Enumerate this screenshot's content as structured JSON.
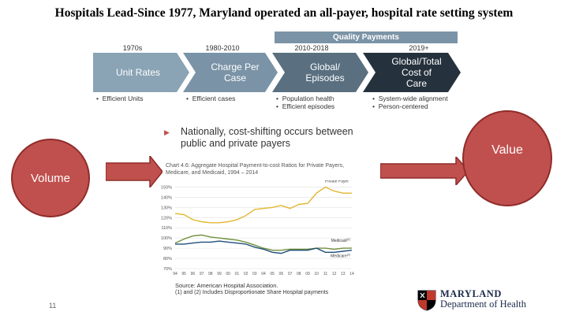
{
  "slide": {
    "title": "Hospitals Lead-Since 1977, Maryland operated an all-payer, hospital rate setting system",
    "page_number": "11"
  },
  "timeline": {
    "quality_bar": "Quality Payments",
    "stages": [
      {
        "era": "1970s",
        "label": "Unit Rates",
        "bullets": [
          "Efficient Units"
        ],
        "color": "#8aa3b5"
      },
      {
        "era": "1980-2010",
        "label": "Charge Per\nCase",
        "bullets": [
          "Efficient cases"
        ],
        "color": "#7a93a6"
      },
      {
        "era": "2010-2018",
        "label": "Global/\nEpisodes",
        "bullets": [
          "Population health",
          "Efficient episodes"
        ],
        "color": "#5a7080"
      },
      {
        "era": "2019+",
        "label": "Global/Total\nCost of\nCare",
        "bullets": [
          "System-wide alignment",
          "Person-centered"
        ],
        "color": "#25323d"
      }
    ]
  },
  "note": "Nationally, cost-shifting occurs between public and private payers",
  "circles": {
    "left": "Volume",
    "right": "Value",
    "color": "#c0504d"
  },
  "chart_data": {
    "type": "line",
    "title": "Chart 4.6: Aggregate Hospital Payment-to-cost Ratios for Private Payers, Medicare, and Medicaid, 1994 – 2014",
    "x": [
      "94",
      "95",
      "96",
      "97",
      "98",
      "99",
      "00",
      "01",
      "02",
      "03",
      "04",
      "05",
      "06",
      "07",
      "08",
      "09",
      "10",
      "11",
      "12",
      "13",
      "14"
    ],
    "yticks": [
      "150%",
      "140%",
      "130%",
      "120%",
      "110%",
      "100%",
      "90%",
      "80%",
      "70%"
    ],
    "ylim": [
      70,
      155
    ],
    "series": [
      {
        "name": "Private Payer",
        "color": "#e3b631",
        "values": [
          124,
          123,
          118,
          116,
          115,
          115,
          116,
          118,
          122,
          128,
          129,
          130,
          132,
          129,
          133,
          134,
          144,
          150,
          146,
          144,
          144
        ]
      },
      {
        "name": "Medicaid",
        "note": "(1)",
        "color": "#6f8f3c",
        "values": [
          95,
          99,
          102,
          103,
          101,
          100,
          99,
          98,
          96,
          93,
          90,
          88,
          88,
          89,
          89,
          89,
          90,
          90,
          89,
          90,
          90
        ]
      },
      {
        "name": "Medicare",
        "note": "(2)",
        "color": "#1f4e79",
        "values": [
          94,
          94,
          95,
          96,
          96,
          97,
          96,
          95,
          94,
          91,
          89,
          86,
          85,
          88,
          88,
          88,
          90,
          86,
          86,
          87,
          88
        ]
      }
    ]
  },
  "chart_source": {
    "line1": "Source: American Hospital Association.",
    "line2": "(1) and (2) Includes Disproportionate Share Hospital payments"
  },
  "logo": {
    "line1": "MARYLAND",
    "line2": "Department of Health"
  }
}
